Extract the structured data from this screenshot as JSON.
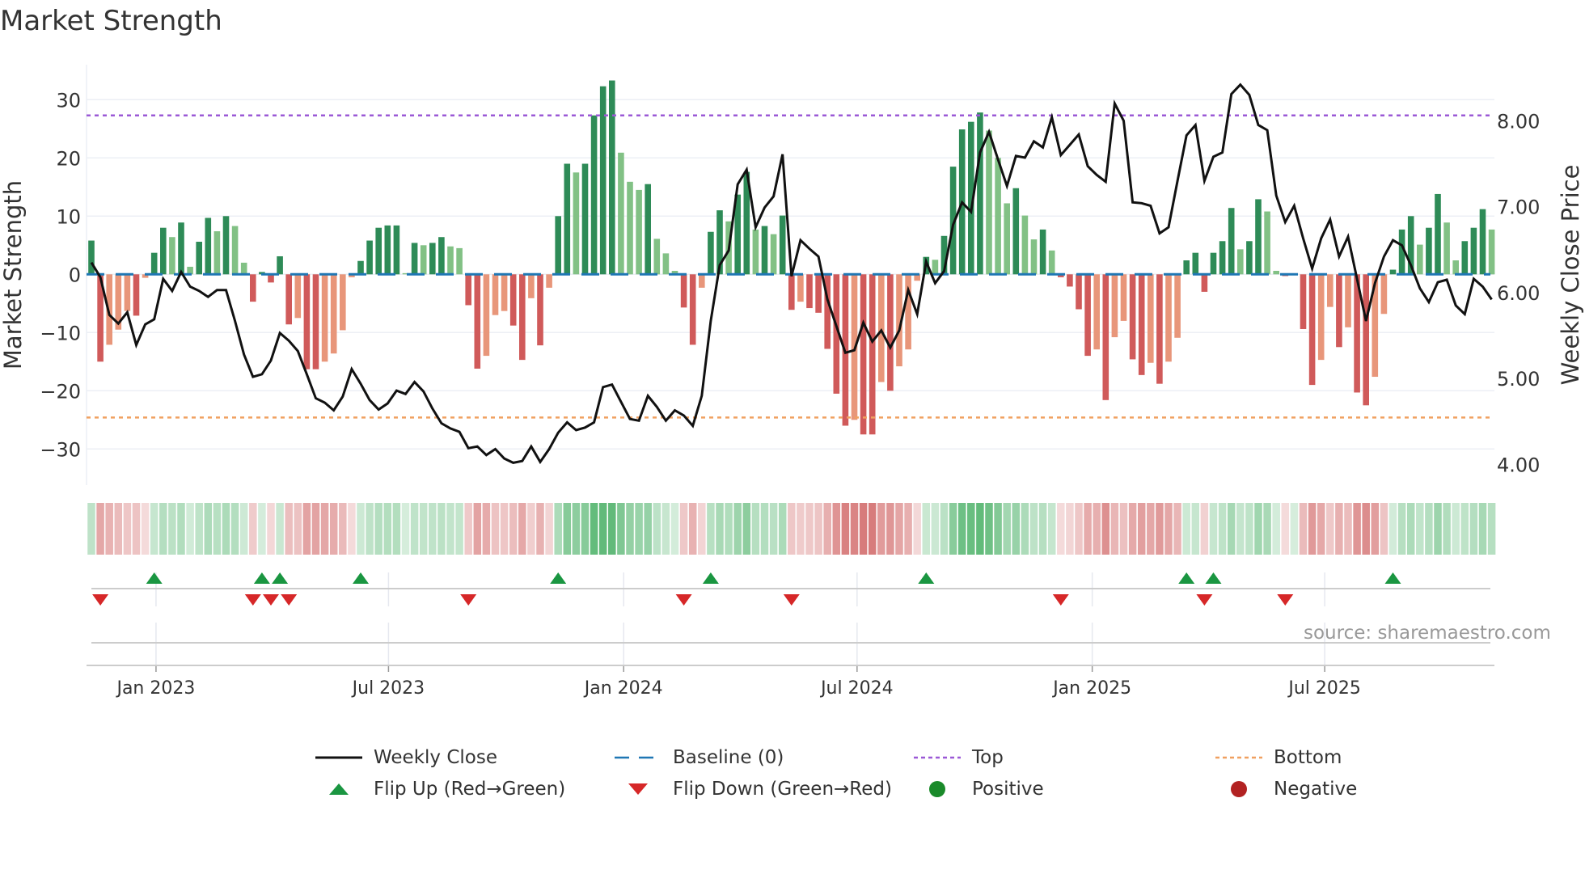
{
  "title": "Market Strength",
  "source": "source: sharemaestro.com",
  "colors": {
    "up_strong": "#2e8b57",
    "up_weak": "#82c185",
    "down_strong": "#d05a5a",
    "down_weak": "#e8967a",
    "baseline": "#1f77b4",
    "top": "#9b59d6",
    "bottom": "#f0a060",
    "flip_up": "#1a9641",
    "flip_down": "#d62728",
    "positive": "#1a8a2a",
    "negative": "#b22222",
    "close": "#111111"
  },
  "legend": [
    {
      "label": "Weekly Close",
      "kind": "line"
    },
    {
      "label": "Baseline (0)",
      "kind": "baseline"
    },
    {
      "label": "Top",
      "kind": "top"
    },
    {
      "label": "Bottom",
      "kind": "bottom"
    },
    {
      "label": "Flip Up (Red→Green)",
      "kind": "up"
    },
    {
      "label": "Flip Down (Green→Red)",
      "kind": "down"
    },
    {
      "label": "Positive",
      "kind": "pos"
    },
    {
      "label": "Negative",
      "kind": "neg"
    }
  ],
  "chart_data": {
    "type": "bar",
    "title": "Market Strength",
    "ylabel": "Market Strength",
    "y2label": "Weekly Close Price",
    "ylim": [
      -36,
      36
    ],
    "y2lim": [
      3.6,
      8.8
    ],
    "yticks": [
      30,
      20,
      10,
      0,
      -10,
      -20,
      -30
    ],
    "yticklabels": [
      "30",
      "20",
      "10",
      "0",
      "−10",
      "−20",
      "−30"
    ],
    "y2ticks": [
      8,
      7,
      6,
      5,
      4
    ],
    "y2ticklabels": [
      "8.00",
      "7.00",
      "6.00",
      "5.00",
      "4.00"
    ],
    "top_level": 27.3,
    "bottom_level": -24.6,
    "xticks": [
      {
        "label": "Jan 2023",
        "week": 7.2
      },
      {
        "label": "Jul 2023",
        "week": 33.1
      },
      {
        "label": "Jan 2024",
        "week": 59.3
      },
      {
        "label": "Jul 2024",
        "week": 85.3
      },
      {
        "label": "Jan 2025",
        "week": 111.5
      },
      {
        "label": "Jul 2025",
        "week": 137.4
      }
    ],
    "strength": [
      5.8,
      -15,
      -12.1,
      -9.5,
      -6.3,
      -7.1,
      -0.6,
      3.7,
      8.0,
      6.4,
      8.9,
      1.3,
      5.6,
      9.7,
      7.4,
      10,
      8.3,
      2.0,
      -4.7,
      0.4,
      -1.4,
      3.1,
      -8.6,
      -7.5,
      -16.3,
      -16.3,
      -15,
      -13.6,
      -9.6,
      -0.5,
      2.3,
      5.8,
      8.0,
      8.4,
      8.4,
      0.2,
      5.4,
      5.0,
      5.4,
      6.4,
      4.8,
      4.5,
      -5.3,
      -16.2,
      -14,
      -7,
      -6.3,
      -8.8,
      -14.7,
      -4.1,
      -12.2,
      -2.3,
      10,
      19,
      17.5,
      19,
      27.3,
      32.3,
      33.3,
      20.9,
      15.9,
      14.5,
      15.5,
      6.1,
      3.6,
      0.6,
      -5.7,
      -12.1,
      -2.3,
      7.3,
      11,
      9.1,
      13.7,
      17.6,
      7.7,
      8.3,
      6.9,
      10.1,
      -6.1,
      -4.7,
      -5.8,
      -6.6,
      -12.8,
      -20.5,
      -26,
      -25,
      -27.5,
      -27.5,
      -18.5,
      -20,
      -15.8,
      -12.9,
      -1.1,
      3,
      2.5,
      6.6,
      18.5,
      24.9,
      26.2,
      27.8,
      24.7,
      20,
      12.2,
      14.8,
      10.1,
      6,
      7.7,
      4.1,
      -0.5,
      -2.1,
      -6,
      -14,
      -12.9,
      -21.6,
      -10.8,
      -8,
      -14.6,
      -17.3,
      -15.2,
      -18.8,
      -15,
      -10.9,
      2.4,
      3.7,
      -3,
      3.7,
      5.7,
      11.4,
      4.3,
      5.7,
      12.9,
      10.8,
      0.6,
      -0.3,
      0,
      -9.4,
      -19,
      -14.7,
      -5.6,
      -12.5,
      -9.1,
      -20.3,
      -22.5,
      -17.6,
      -6.8,
      0.8,
      7.7,
      10,
      5.1,
      8.0,
      13.8,
      8.9,
      2.4,
      5.7,
      8,
      11.2,
      7.7
    ],
    "close": [
      6.35,
      6.18,
      5.74,
      5.64,
      5.77,
      5.39,
      5.63,
      5.69,
      6.16,
      6.02,
      6.24,
      6.07,
      6.02,
      5.95,
      6.03,
      6.03,
      5.67,
      5.28,
      5.02,
      5.05,
      5.21,
      5.53,
      5.44,
      5.32,
      5.05,
      4.77,
      4.72,
      4.63,
      4.79,
      5.11,
      4.94,
      4.75,
      4.64,
      4.71,
      4.86,
      4.82,
      4.96,
      4.85,
      4.65,
      4.48,
      4.42,
      4.38,
      4.19,
      4.21,
      4.11,
      4.18,
      4.07,
      4.02,
      4.04,
      4.21,
      4.03,
      4.18,
      4.37,
      4.49,
      4.4,
      4.43,
      4.49,
      4.9,
      4.93,
      4.73,
      4.53,
      4.51,
      4.8,
      4.67,
      4.51,
      4.63,
      4.57,
      4.45,
      4.8,
      5.67,
      6.32,
      6.49,
      7.26,
      7.43,
      6.76,
      6.99,
      7.12,
      7.61,
      6.19,
      6.61,
      6.51,
      6.42,
      5.92,
      5.61,
      5.3,
      5.33,
      5.65,
      5.43,
      5.56,
      5.36,
      5.56,
      6.03,
      5.75,
      6.36,
      6.11,
      6.25,
      6.79,
      7.05,
      6.94,
      7.63,
      7.87,
      7.55,
      7.24,
      7.59,
      7.57,
      7.76,
      7.69,
      8.04,
      7.6,
      7.72,
      7.84,
      7.47,
      7.37,
      7.29,
      8.2,
      8.0,
      7.05,
      7.04,
      7.01,
      6.69,
      6.76,
      7.3,
      7.83,
      7.95,
      7.3,
      7.58,
      7.63,
      8.31,
      8.42,
      8.3,
      7.95,
      7.89,
      7.13,
      6.82,
      7.01,
      6.63,
      6.28,
      6.63,
      6.85,
      6.42,
      6.65,
      6.16,
      5.67,
      6.11,
      6.42,
      6.61,
      6.55,
      6.32,
      6.05,
      5.89,
      6.12,
      6.15,
      5.85,
      5.75,
      6.16,
      6.07,
      5.92
    ]
  }
}
